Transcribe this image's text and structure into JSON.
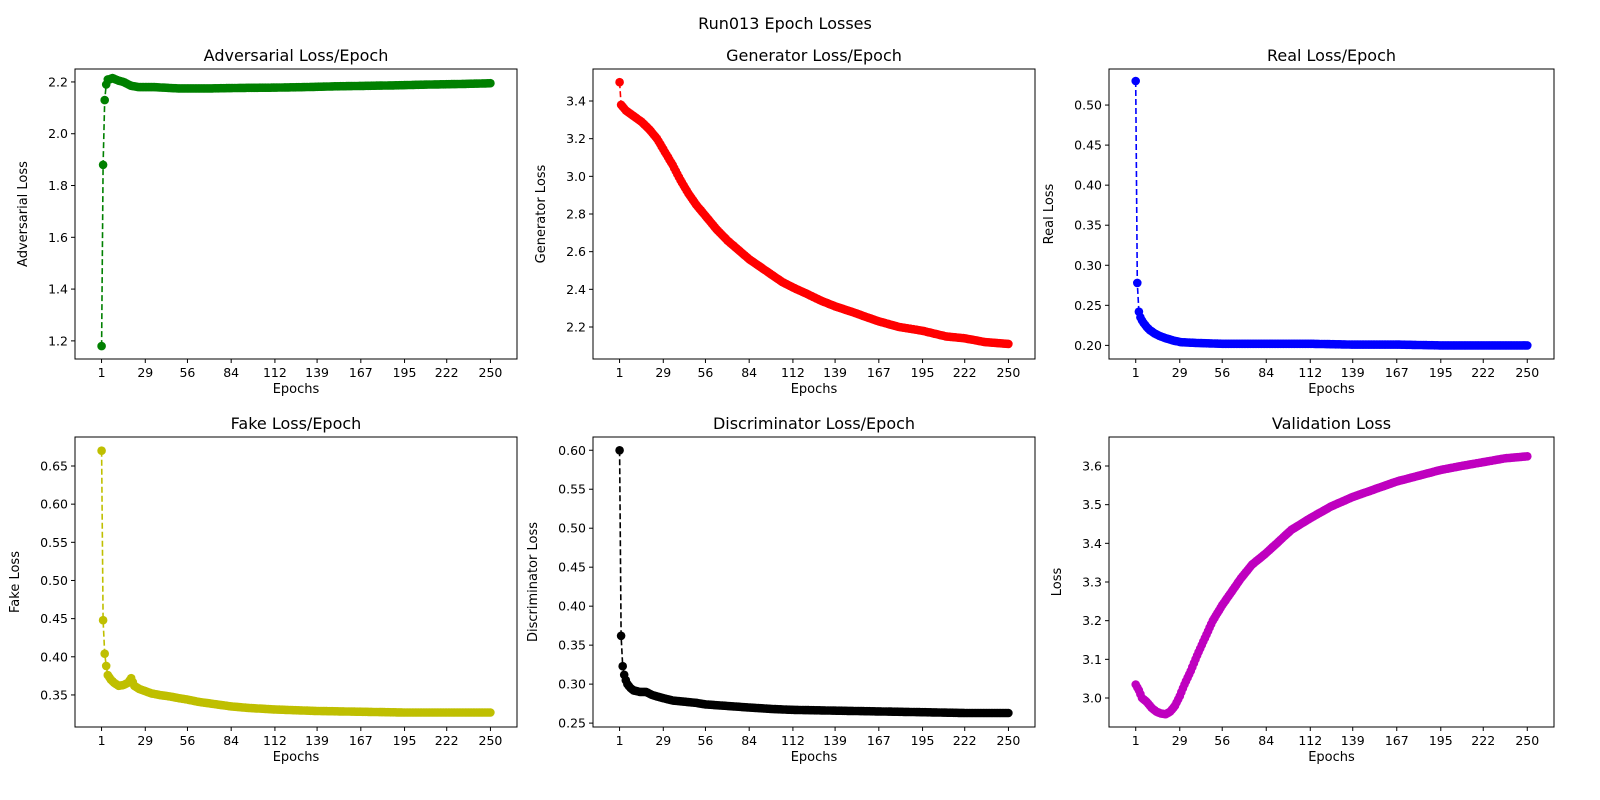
{
  "figure": {
    "title": "Run013 Epoch Losses"
  },
  "chart_data": [
    {
      "type": "line",
      "title": "Adversarial Loss/Epoch",
      "xlabel": "Epochs",
      "ylabel": "Adversarial Loss",
      "color": "#008000",
      "line_style": "dashed",
      "marker": "circle",
      "grid": false,
      "xlim": [
        -16,
        267
      ],
      "ylim": [
        1.13,
        2.25
      ],
      "xticks": [
        1,
        29,
        56,
        84,
        112,
        139,
        167,
        195,
        222,
        250
      ],
      "yticks": [
        1.2,
        1.4,
        1.6,
        1.8,
        2.0,
        2.2
      ],
      "ytick_labels": [
        "1.2",
        "1.4",
        "1.6",
        "1.8",
        "2.0",
        "2.2"
      ],
      "x_range": [
        1,
        250
      ],
      "points": [
        [
          1,
          1.18
        ],
        [
          2,
          1.88
        ],
        [
          3,
          2.13
        ],
        [
          4,
          2.19
        ],
        [
          5,
          2.21
        ],
        [
          6,
          2.21
        ],
        [
          8,
          2.215
        ],
        [
          10,
          2.21
        ],
        [
          12,
          2.205
        ],
        [
          15,
          2.2
        ],
        [
          20,
          2.185
        ],
        [
          25,
          2.18
        ],
        [
          35,
          2.18
        ],
        [
          50,
          2.175
        ],
        [
          70,
          2.175
        ],
        [
          90,
          2.177
        ],
        [
          110,
          2.178
        ],
        [
          130,
          2.18
        ],
        [
          150,
          2.183
        ],
        [
          170,
          2.185
        ],
        [
          190,
          2.187
        ],
        [
          210,
          2.19
        ],
        [
          230,
          2.192
        ],
        [
          250,
          2.195
        ]
      ]
    },
    {
      "type": "line",
      "title": "Generator Loss/Epoch",
      "xlabel": "Epochs",
      "ylabel": "Generator Loss",
      "color": "#ff0000",
      "line_style": "dashed",
      "marker": "circle",
      "grid": false,
      "xlim": [
        -16,
        267
      ],
      "ylim": [
        2.03,
        3.57
      ],
      "xticks": [
        1,
        29,
        56,
        84,
        112,
        139,
        167,
        195,
        222,
        250
      ],
      "yticks": [
        2.2,
        2.4,
        2.6,
        2.8,
        3.0,
        3.2,
        3.4
      ],
      "ytick_labels": [
        "2.2",
        "2.4",
        "2.6",
        "2.8",
        "3.0",
        "3.2",
        "3.4"
      ],
      "x_range": [
        1,
        250
      ],
      "points": [
        [
          1,
          3.5
        ],
        [
          2,
          3.38
        ],
        [
          3,
          3.37
        ],
        [
          5,
          3.35
        ],
        [
          10,
          3.32
        ],
        [
          15,
          3.29
        ],
        [
          20,
          3.25
        ],
        [
          25,
          3.2
        ],
        [
          30,
          3.13
        ],
        [
          35,
          3.06
        ],
        [
          40,
          2.98
        ],
        [
          45,
          2.91
        ],
        [
          50,
          2.85
        ],
        [
          56,
          2.79
        ],
        [
          63,
          2.72
        ],
        [
          70,
          2.66
        ],
        [
          77,
          2.61
        ],
        [
          84,
          2.56
        ],
        [
          91,
          2.52
        ],
        [
          98,
          2.48
        ],
        [
          105,
          2.44
        ],
        [
          112,
          2.41
        ],
        [
          120,
          2.38
        ],
        [
          130,
          2.34
        ],
        [
          139,
          2.31
        ],
        [
          150,
          2.28
        ],
        [
          160,
          2.25
        ],
        [
          167,
          2.23
        ],
        [
          180,
          2.2
        ],
        [
          195,
          2.18
        ],
        [
          210,
          2.15
        ],
        [
          222,
          2.14
        ],
        [
          235,
          2.12
        ],
        [
          250,
          2.11
        ]
      ]
    },
    {
      "type": "line",
      "title": "Real Loss/Epoch",
      "xlabel": "Epochs",
      "ylabel": "Real Loss",
      "color": "#0000ff",
      "line_style": "dashed",
      "marker": "circle",
      "grid": false,
      "xlim": [
        -16,
        267
      ],
      "ylim": [
        0.183,
        0.545
      ],
      "xticks": [
        1,
        29,
        56,
        84,
        112,
        139,
        167,
        195,
        222,
        250
      ],
      "yticks": [
        0.2,
        0.25,
        0.3,
        0.35,
        0.4,
        0.45,
        0.5
      ],
      "ytick_labels": [
        "0.20",
        "0.25",
        "0.30",
        "0.35",
        "0.40",
        "0.45",
        "0.50"
      ],
      "x_range": [
        1,
        250
      ],
      "points": [
        [
          1,
          0.53
        ],
        [
          2,
          0.278
        ],
        [
          3,
          0.242
        ],
        [
          4,
          0.235
        ],
        [
          5,
          0.231
        ],
        [
          6,
          0.228
        ],
        [
          8,
          0.223
        ],
        [
          10,
          0.219
        ],
        [
          13,
          0.215
        ],
        [
          16,
          0.212
        ],
        [
          20,
          0.209
        ],
        [
          25,
          0.206
        ],
        [
          30,
          0.204
        ],
        [
          40,
          0.203
        ],
        [
          56,
          0.202
        ],
        [
          84,
          0.202
        ],
        [
          112,
          0.202
        ],
        [
          139,
          0.201
        ],
        [
          167,
          0.201
        ],
        [
          195,
          0.2
        ],
        [
          222,
          0.2
        ],
        [
          250,
          0.2
        ]
      ]
    },
    {
      "type": "line",
      "title": "Fake Loss/Epoch",
      "xlabel": "Epochs",
      "ylabel": "Fake Loss",
      "color": "#bfbf00",
      "line_style": "dashed",
      "marker": "circle",
      "grid": false,
      "xlim": [
        -16,
        267
      ],
      "ylim": [
        0.308,
        0.688
      ],
      "xticks": [
        1,
        29,
        56,
        84,
        112,
        139,
        167,
        195,
        222,
        250
      ],
      "yticks": [
        0.35,
        0.4,
        0.45,
        0.5,
        0.55,
        0.6,
        0.65
      ],
      "ytick_labels": [
        "0.35",
        "0.40",
        "0.45",
        "0.50",
        "0.55",
        "0.60",
        "0.65"
      ],
      "x_range": [
        1,
        250
      ],
      "points": [
        [
          1,
          0.67
        ],
        [
          2,
          0.448
        ],
        [
          3,
          0.404
        ],
        [
          4,
          0.388
        ],
        [
          5,
          0.376
        ],
        [
          7,
          0.37
        ],
        [
          9,
          0.366
        ],
        [
          12,
          0.362
        ],
        [
          15,
          0.363
        ],
        [
          18,
          0.366
        ],
        [
          20,
          0.372
        ],
        [
          22,
          0.362
        ],
        [
          25,
          0.358
        ],
        [
          29,
          0.355
        ],
        [
          33,
          0.352
        ],
        [
          38,
          0.35
        ],
        [
          45,
          0.348
        ],
        [
          50,
          0.346
        ],
        [
          56,
          0.344
        ],
        [
          63,
          0.341
        ],
        [
          70,
          0.339
        ],
        [
          77,
          0.337
        ],
        [
          84,
          0.335
        ],
        [
          95,
          0.333
        ],
        [
          112,
          0.331
        ],
        [
          125,
          0.33
        ],
        [
          139,
          0.329
        ],
        [
          167,
          0.328
        ],
        [
          195,
          0.327
        ],
        [
          222,
          0.327
        ],
        [
          250,
          0.327
        ]
      ]
    },
    {
      "type": "line",
      "title": "Discriminator Loss/Epoch",
      "xlabel": "Epochs",
      "ylabel": "Discriminator Loss",
      "color": "#000000",
      "line_style": "dashed",
      "marker": "circle",
      "grid": false,
      "xlim": [
        -16,
        267
      ],
      "ylim": [
        0.245,
        0.617
      ],
      "xticks": [
        1,
        29,
        56,
        84,
        112,
        139,
        167,
        195,
        222,
        250
      ],
      "yticks": [
        0.25,
        0.3,
        0.35,
        0.4,
        0.45,
        0.5,
        0.55,
        0.6
      ],
      "ytick_labels": [
        "0.25",
        "0.30",
        "0.35",
        "0.40",
        "0.45",
        "0.50",
        "0.55",
        "0.60"
      ],
      "x_range": [
        1,
        250
      ],
      "points": [
        [
          1,
          0.6
        ],
        [
          2,
          0.362
        ],
        [
          3,
          0.323
        ],
        [
          4,
          0.312
        ],
        [
          5,
          0.305
        ],
        [
          6,
          0.3
        ],
        [
          8,
          0.295
        ],
        [
          10,
          0.292
        ],
        [
          14,
          0.29
        ],
        [
          18,
          0.29
        ],
        [
          22,
          0.286
        ],
        [
          29,
          0.282
        ],
        [
          35,
          0.279
        ],
        [
          40,
          0.278
        ],
        [
          50,
          0.276
        ],
        [
          56,
          0.274
        ],
        [
          70,
          0.272
        ],
        [
          84,
          0.27
        ],
        [
          100,
          0.268
        ],
        [
          112,
          0.267
        ],
        [
          139,
          0.266
        ],
        [
          167,
          0.265
        ],
        [
          195,
          0.264
        ],
        [
          222,
          0.263
        ],
        [
          250,
          0.263
        ]
      ]
    },
    {
      "type": "scatter",
      "title": "Validation Loss",
      "xlabel": "Epochs",
      "ylabel": "Loss",
      "color": "#bf00bf",
      "line_style": "none",
      "marker": "circle",
      "grid": false,
      "xlim": [
        -16,
        267
      ],
      "ylim": [
        2.925,
        3.675
      ],
      "xticks": [
        1,
        29,
        56,
        84,
        112,
        139,
        167,
        195,
        222,
        250
      ],
      "yticks": [
        3.0,
        3.1,
        3.2,
        3.3,
        3.4,
        3.5,
        3.6
      ],
      "ytick_labels": [
        "3.0",
        "3.1",
        "3.2",
        "3.3",
        "3.4",
        "3.5",
        "3.6"
      ],
      "x_range": [
        1,
        250
      ],
      "points": [
        [
          1,
          3.035
        ],
        [
          3,
          3.02
        ],
        [
          5,
          3.0
        ],
        [
          8,
          2.99
        ],
        [
          11,
          2.975
        ],
        [
          14,
          2.965
        ],
        [
          17,
          2.96
        ],
        [
          20,
          2.958
        ],
        [
          23,
          2.965
        ],
        [
          26,
          2.98
        ],
        [
          29,
          3.005
        ],
        [
          32,
          3.035
        ],
        [
          36,
          3.07
        ],
        [
          40,
          3.11
        ],
        [
          45,
          3.155
        ],
        [
          50,
          3.2
        ],
        [
          56,
          3.24
        ],
        [
          62,
          3.275
        ],
        [
          68,
          3.31
        ],
        [
          75,
          3.345
        ],
        [
          84,
          3.375
        ],
        [
          92,
          3.405
        ],
        [
          100,
          3.435
        ],
        [
          112,
          3.465
        ],
        [
          125,
          3.495
        ],
        [
          139,
          3.52
        ],
        [
          153,
          3.54
        ],
        [
          167,
          3.56
        ],
        [
          181,
          3.575
        ],
        [
          195,
          3.59
        ],
        [
          208,
          3.6
        ],
        [
          222,
          3.61
        ],
        [
          236,
          3.62
        ],
        [
          250,
          3.625
        ]
      ]
    }
  ]
}
